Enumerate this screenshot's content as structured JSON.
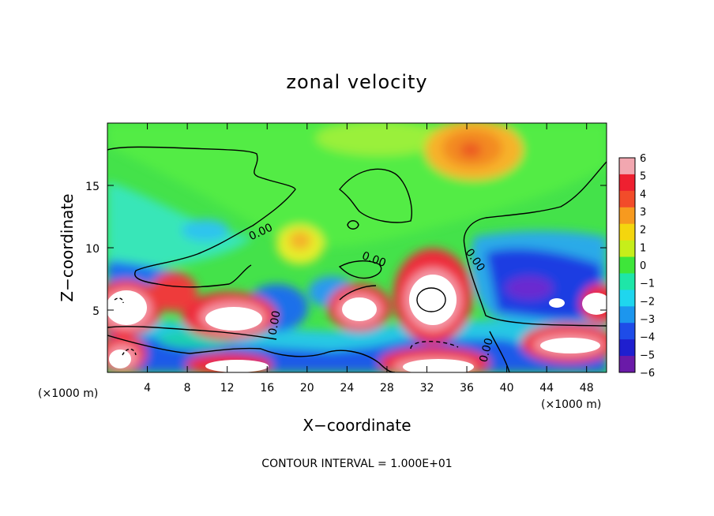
{
  "chart_data": {
    "type": "heatmap",
    "title": "zonal velocity",
    "xlabel": "X−coordinate",
    "ylabel": "Z−coordinate",
    "x_unit_left": "(×1000 m)",
    "x_unit_right": "(×1000 m)",
    "xlim": [
      0,
      50
    ],
    "ylim": [
      0,
      20
    ],
    "x_ticks": [
      4,
      8,
      12,
      16,
      20,
      24,
      28,
      32,
      36,
      40,
      44,
      48
    ],
    "y_ticks": [
      5,
      10,
      15
    ],
    "colorbar": {
      "min": -6,
      "max": 6,
      "ticks": [
        "6",
        "5",
        "4",
        "3",
        "2",
        "1",
        "0",
        "−1",
        "−2",
        "−3",
        "−4",
        "−5",
        "−6"
      ],
      "colors": [
        "#f2a7b0",
        "#ee2030",
        "#f24c2a",
        "#f79a1f",
        "#f4d60e",
        "#c6ee1a",
        "#3ee63a",
        "#1ee6a8",
        "#1fd6ee",
        "#1c96ee",
        "#1e4ce8",
        "#1f1fcf",
        "#6a1aa8"
      ]
    },
    "contour_labels": [
      "0.00",
      "0.00",
      "0.00",
      "0.00",
      "0.00"
    ],
    "footer": "CONTOUR INTERVAL = 1.000E+01"
  }
}
